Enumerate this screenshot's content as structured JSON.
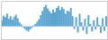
{
  "chart_data": {
    "type": "bar",
    "categories": [
      null,
      null,
      null,
      null,
      null,
      null,
      null,
      null,
      null,
      null,
      null,
      null,
      null,
      null,
      null,
      null,
      null,
      null,
      null,
      null,
      null,
      null,
      null,
      null,
      null,
      null,
      null,
      null,
      null,
      null,
      null,
      null,
      null,
      null,
      null,
      null,
      null,
      null,
      null,
      null,
      null,
      null,
      null,
      null,
      null,
      null,
      null,
      null,
      null,
      null,
      null,
      null,
      null,
      null,
      null,
      null,
      null,
      null,
      null,
      null
    ],
    "values": [
      1.2,
      2.1,
      1.8,
      2.5,
      1.5,
      2.0,
      1.3,
      1.9,
      2.3,
      1.6,
      0.8,
      0.4,
      -0.2,
      -0.5,
      -0.8,
      -1.0,
      -0.6,
      -0.3,
      0.2,
      0.5,
      0.9,
      1.4,
      2.2,
      3.0,
      3.8,
      4.2,
      3.5,
      3.0,
      2.6,
      3.3,
      2.8,
      3.6,
      4.0,
      3.2,
      3.8,
      3.4,
      2.5,
      3.1,
      2.9,
      3.6,
      2.0,
      -0.5,
      1.8,
      -1.2,
      2.5,
      0.8,
      -0.8,
      1.5,
      -1.5,
      2.2,
      0.5,
      -1.0,
      1.2,
      -0.6,
      1.8,
      0.3,
      -1.3,
      1.6,
      -0.9,
      2.0
    ],
    "color": "#5ba3d0",
    "ylim": [
      -2.5,
      5.0
    ],
    "tick_labels": false
  }
}
